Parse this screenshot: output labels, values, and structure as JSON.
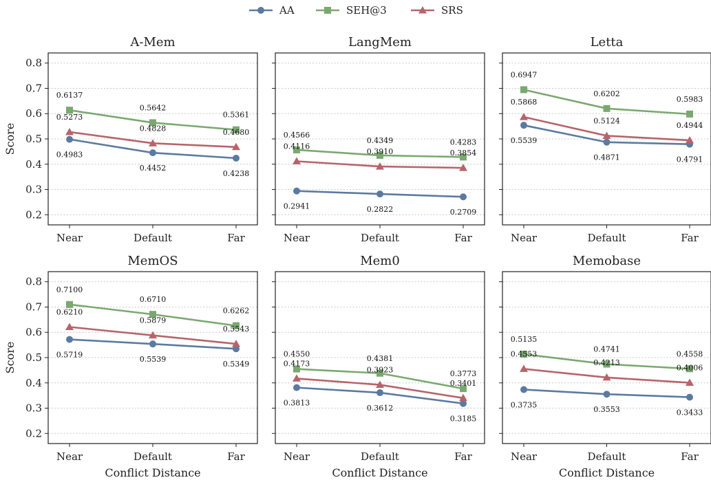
{
  "legend": {
    "placement": "top-center",
    "items": [
      {
        "label": "AA",
        "color": "#5b7aa1",
        "marker": "circle"
      },
      {
        "label": "SEH@3",
        "color": "#7aa86f",
        "marker": "square"
      },
      {
        "label": "SRS",
        "color": "#b6646a",
        "marker": "triangle"
      }
    ]
  },
  "chart_data": [
    {
      "type": "line",
      "title": "A-Mem",
      "categories": [
        "Near",
        "Default",
        "Far"
      ],
      "xlabel": "",
      "ylabel": "Score",
      "ylim": [
        0.16,
        0.84
      ],
      "yticks": [
        "0.2",
        "0.3",
        "0.4",
        "0.5",
        "0.6",
        "0.7",
        "0.8"
      ],
      "grid": "horizontal dotted",
      "series": [
        {
          "name": "AA",
          "values": [
            0.4983,
            0.4452,
            0.4238
          ],
          "labels": [
            "0.4983",
            "0.4452",
            "0.4238"
          ]
        },
        {
          "name": "SEH@3",
          "values": [
            0.6137,
            0.5642,
            0.5361
          ],
          "labels": [
            "0.6137",
            "0.5642",
            "0.5361"
          ]
        },
        {
          "name": "SRS",
          "values": [
            0.5273,
            0.4828,
            0.468
          ],
          "labels": [
            "0.5273",
            "0.4828",
            "0.4680"
          ]
        }
      ]
    },
    {
      "type": "line",
      "title": "LangMem",
      "categories": [
        "Near",
        "Default",
        "Far"
      ],
      "xlabel": "",
      "ylabel": "",
      "ylim": [
        0.16,
        0.84
      ],
      "yticks": [],
      "grid": "horizontal dotted",
      "series": [
        {
          "name": "AA",
          "values": [
            0.2941,
            0.2822,
            0.2709
          ],
          "labels": [
            "0.2941",
            "0.2822",
            "0.2709"
          ]
        },
        {
          "name": "SEH@3",
          "values": [
            0.4566,
            0.4349,
            0.4283
          ],
          "labels": [
            "0.4566",
            "0.4349",
            "0.4283"
          ]
        },
        {
          "name": "SRS",
          "values": [
            0.4116,
            0.391,
            0.3854
          ],
          "labels": [
            "0.4116",
            "0.3910",
            "0.3854"
          ]
        }
      ]
    },
    {
      "type": "line",
      "title": "Letta",
      "categories": [
        "Near",
        "Default",
        "Far"
      ],
      "xlabel": "",
      "ylabel": "",
      "ylim": [
        0.16,
        0.84
      ],
      "yticks": [],
      "grid": "horizontal dotted",
      "series": [
        {
          "name": "AA",
          "values": [
            0.5539,
            0.4871,
            0.4791
          ],
          "labels": [
            "0.5539",
            "0.4871",
            "0.4791"
          ]
        },
        {
          "name": "SEH@3",
          "values": [
            0.6947,
            0.6202,
            0.5983
          ],
          "labels": [
            "0.6947",
            "0.6202",
            "0.5983"
          ]
        },
        {
          "name": "SRS",
          "values": [
            0.5868,
            0.5124,
            0.4944
          ],
          "labels": [
            "0.5868",
            "0.5124",
            "0.4944"
          ]
        }
      ]
    },
    {
      "type": "line",
      "title": "MemOS",
      "categories": [
        "Near",
        "Default",
        "Far"
      ],
      "xlabel": "Conflict Distance",
      "ylabel": "Score",
      "ylim": [
        0.16,
        0.84
      ],
      "yticks": [
        "0.2",
        "0.3",
        "0.4",
        "0.5",
        "0.6",
        "0.7",
        "0.8"
      ],
      "grid": "horizontal dotted",
      "series": [
        {
          "name": "AA",
          "values": [
            0.5719,
            0.5539,
            0.5349
          ],
          "labels": [
            "0.5719",
            "0.5539",
            "0.5349"
          ]
        },
        {
          "name": "SEH@3",
          "values": [
            0.71,
            0.671,
            0.6262
          ],
          "labels": [
            "0.7100",
            "0.6710",
            "0.6262"
          ]
        },
        {
          "name": "SRS",
          "values": [
            0.621,
            0.5879,
            0.5543
          ],
          "labels": [
            "0.6210",
            "0.5879",
            "0.5543"
          ]
        }
      ]
    },
    {
      "type": "line",
      "title": "Mem0",
      "categories": [
        "Near",
        "Default",
        "Far"
      ],
      "xlabel": "Conflict Distance",
      "ylabel": "",
      "ylim": [
        0.16,
        0.84
      ],
      "yticks": [],
      "grid": "horizontal dotted",
      "series": [
        {
          "name": "AA",
          "values": [
            0.3813,
            0.3612,
            0.3185
          ],
          "labels": [
            "0.3813",
            "0.3612",
            "0.3185"
          ]
        },
        {
          "name": "SEH@3",
          "values": [
            0.455,
            0.4381,
            0.3773
          ],
          "labels": [
            "0.4550",
            "0.4381",
            "0.3773"
          ]
        },
        {
          "name": "SRS",
          "values": [
            0.4173,
            0.3923,
            0.3401
          ],
          "labels": [
            "0.4173",
            "0.3923",
            "0.3401"
          ]
        }
      ]
    },
    {
      "type": "line",
      "title": "Memobase",
      "categories": [
        "Near",
        "Default",
        "Far"
      ],
      "xlabel": "Conflict Distance",
      "ylabel": "",
      "ylim": [
        0.16,
        0.84
      ],
      "yticks": [],
      "grid": "horizontal dotted",
      "series": [
        {
          "name": "AA",
          "values": [
            0.3735,
            0.3553,
            0.3433
          ],
          "labels": [
            "0.3735",
            "0.3553",
            "0.3433"
          ]
        },
        {
          "name": "SEH@3",
          "values": [
            0.5135,
            0.4741,
            0.4558
          ],
          "labels": [
            "0.5135",
            "0.4741",
            "0.4558"
          ]
        },
        {
          "name": "SRS",
          "values": [
            0.4553,
            0.4213,
            0.4006
          ],
          "labels": [
            "0.4553",
            "0.4213",
            "0.4006"
          ]
        }
      ]
    }
  ]
}
